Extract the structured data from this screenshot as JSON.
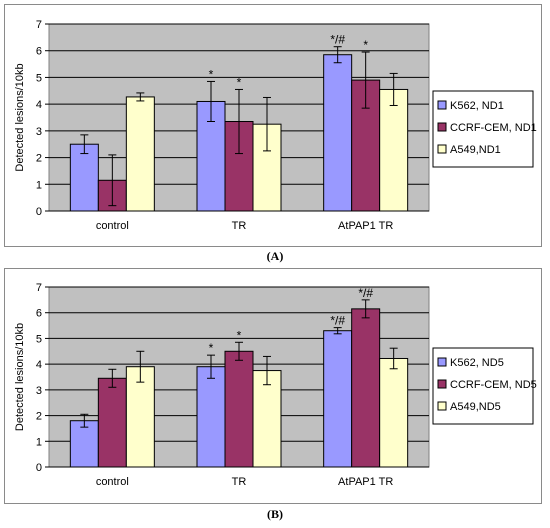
{
  "captions": {
    "a": "(A)",
    "b": "(B)"
  },
  "chart_data": [
    {
      "type": "bar",
      "ylabel": "Detected lesions/10kb",
      "ylim": [
        0,
        7
      ],
      "yticks": [
        "0",
        "1",
        "2",
        "3",
        "4",
        "5",
        "6",
        "7"
      ],
      "categories": [
        "control",
        "TR",
        "AtPAP1 TR"
      ],
      "grid": true,
      "legend_position": "right",
      "series": [
        {
          "name": "K562, ND1",
          "color": "#9999ff",
          "values": [
            2.5,
            4.1,
            5.85
          ],
          "errors": [
            0.35,
            0.75,
            0.3
          ],
          "labels": [
            "",
            "*",
            "*/#"
          ]
        },
        {
          "name": "CCRF-CEM, ND1",
          "color": "#993366",
          "values": [
            1.15,
            3.35,
            4.9
          ],
          "errors": [
            0.95,
            1.2,
            1.05
          ],
          "labels": [
            "",
            "*",
            "*"
          ]
        },
        {
          "name": "A549,ND1",
          "color": "#ffffcc",
          "values": [
            4.27,
            3.25,
            4.55
          ],
          "errors": [
            0.15,
            1.0,
            0.6
          ],
          "labels": [
            "",
            "",
            ""
          ]
        }
      ]
    },
    {
      "type": "bar",
      "ylabel": "Detected lesions/10kb",
      "ylim": [
        0,
        7
      ],
      "yticks": [
        "0",
        "1",
        "2",
        "3",
        "4",
        "5",
        "6",
        "7"
      ],
      "categories": [
        "control",
        "TR",
        "AtPAP1 TR"
      ],
      "grid": true,
      "legend_position": "right",
      "series": [
        {
          "name": "K562, ND5",
          "color": "#9999ff",
          "values": [
            1.8,
            3.9,
            5.3
          ],
          "errors": [
            0.25,
            0.45,
            0.12
          ],
          "labels": [
            "",
            "*",
            "*/#"
          ]
        },
        {
          "name": "CCRF-CEM, ND5",
          "color": "#993366",
          "values": [
            3.45,
            4.5,
            6.15
          ],
          "errors": [
            0.35,
            0.35,
            0.35
          ],
          "labels": [
            "",
            "*",
            "*/#"
          ]
        },
        {
          "name": "A549,ND5",
          "color": "#ffffcc",
          "values": [
            3.9,
            3.75,
            4.22
          ],
          "errors": [
            0.6,
            0.55,
            0.4
          ],
          "labels": [
            "",
            "",
            ""
          ]
        }
      ]
    }
  ]
}
